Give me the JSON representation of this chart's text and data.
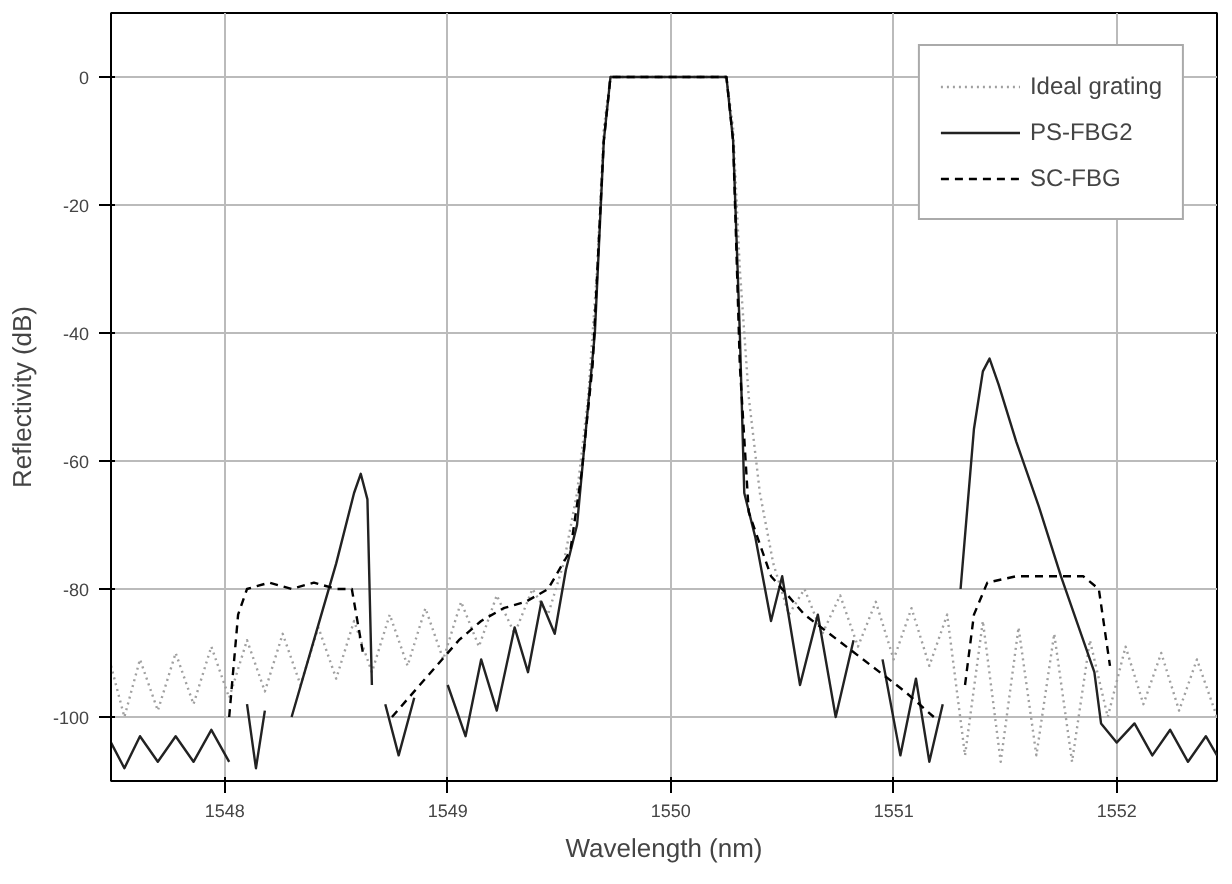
{
  "chart_data": {
    "type": "line",
    "xlabel": "Wavelength (nm)",
    "ylabel": "Reflectivity (dB)",
    "xlim": [
      1547.49,
      1552.45
    ],
    "ylim": [
      -110,
      10
    ],
    "xticks": [
      1548,
      1549,
      1550,
      1551,
      1552
    ],
    "yticks": [
      -100,
      -80,
      -60,
      -40,
      -20,
      0
    ],
    "grid": true,
    "legend": "top right",
    "series": [
      {
        "name": "Ideal grating",
        "color": "#a0a0a0",
        "line_style": "dotted",
        "x": [
          1547.49,
          1547.55,
          1547.62,
          1547.7,
          1547.78,
          1547.86,
          1547.94,
          1548.02,
          1548.1,
          1548.18,
          1548.26,
          1548.34,
          1548.42,
          1548.5,
          1548.58,
          1548.66,
          1548.74,
          1548.82,
          1548.9,
          1548.98,
          1549.06,
          1549.14,
          1549.22,
          1549.3,
          1549.38,
          1549.45,
          1549.52,
          1549.58,
          1549.63,
          1549.67,
          1549.7,
          1549.73,
          1550.25,
          1550.28,
          1550.31,
          1550.35,
          1550.4,
          1550.46,
          1550.53,
          1550.6,
          1550.68,
          1550.76,
          1550.84,
          1550.92,
          1551.0,
          1551.08,
          1551.16,
          1551.24,
          1551.32,
          1551.4,
          1551.48,
          1551.56,
          1551.64,
          1551.72,
          1551.8,
          1551.88,
          1551.96,
          1552.04,
          1552.12,
          1552.2,
          1552.28,
          1552.36,
          1552.45
        ],
        "values": [
          -92,
          -100,
          -91,
          -99,
          -90,
          -98,
          -89,
          -97,
          -88,
          -96,
          -87,
          -95,
          -86,
          -94,
          -85,
          -93,
          -84,
          -92,
          -83,
          -91,
          -82,
          -89,
          -81,
          -87,
          -80,
          -84,
          -76,
          -65,
          -50,
          -30,
          -8,
          0,
          0,
          -8,
          -30,
          -50,
          -65,
          -76,
          -84,
          -80,
          -87,
          -81,
          -89,
          -82,
          -91,
          -83,
          -92,
          -84,
          -106,
          -85,
          -107,
          -86,
          -106,
          -87,
          -107,
          -88,
          -100,
          -89,
          -98,
          -90,
          -99,
          -91,
          -100
        ]
      },
      {
        "name": "PS-FBG2",
        "color": "#222222",
        "line_style": "solid",
        "x": [
          1547.49,
          1547.55,
          1547.62,
          1547.7,
          1547.78,
          1547.86,
          1547.94,
          1548.02,
          1548.06,
          1548.1,
          1548.14,
          1548.18,
          1548.22,
          1548.3,
          1548.4,
          1548.5,
          1548.58,
          1548.61,
          1548.64,
          1548.66,
          1548.68,
          1548.72,
          1548.78,
          1548.85,
          1548.92,
          1549.0,
          1549.08,
          1549.15,
          1549.22,
          1549.3,
          1549.36,
          1549.42,
          1549.48,
          1549.53,
          1549.58,
          1549.62,
          1549.66,
          1549.7,
          1549.73,
          1550.25,
          1550.28,
          1550.31,
          1550.33,
          1550.38,
          1550.45,
          1550.5,
          1550.58,
          1550.66,
          1550.74,
          1550.82,
          1550.88,
          1550.95,
          1551.03,
          1551.1,
          1551.16,
          1551.22,
          1551.25,
          1551.3,
          1551.36,
          1551.4,
          1551.43,
          1551.47,
          1551.55,
          1551.65,
          1551.75,
          1551.85,
          1551.9,
          1551.93,
          1552.0,
          1552.08,
          1552.16,
          1552.24,
          1552.32,
          1552.4,
          1552.45
        ],
        "values": [
          -104,
          -108,
          -103,
          -107,
          -103,
          -107,
          -102,
          -107,
          null,
          -98,
          -108,
          -99,
          null,
          -100,
          -88,
          -76,
          -65,
          -62,
          -66,
          -95,
          null,
          -98,
          -106,
          -97,
          null,
          -95,
          -103,
          -91,
          -99,
          -86,
          -93,
          -82,
          -87,
          -77,
          -70,
          -55,
          -40,
          -10,
          0,
          0,
          -10,
          -40,
          -65,
          -72,
          -85,
          -78,
          -95,
          -84,
          -100,
          -88,
          null,
          -91,
          -106,
          -94,
          -107,
          -98,
          null,
          -80,
          -55,
          -46,
          -44,
          -48,
          -57,
          -67,
          -78,
          -88,
          -93,
          -101,
          -104,
          -101,
          -106,
          -102,
          -107,
          -103,
          -106
        ]
      },
      {
        "name": "SC-FBG",
        "color": "#000000",
        "line_style": "dashed",
        "x": [
          1548.02,
          1548.06,
          1548.1,
          1548.2,
          1548.3,
          1548.4,
          1548.5,
          1548.57,
          1548.62,
          1548.66,
          1548.75,
          1548.85,
          1548.95,
          1549.05,
          1549.15,
          1549.25,
          1549.35,
          1549.45,
          1549.55,
          1549.6,
          1549.65,
          1549.7,
          1549.73,
          1550.25,
          1550.28,
          1550.31,
          1550.35,
          1550.45,
          1550.6,
          1550.75,
          1550.9,
          1551.05,
          1551.18,
          1551.26,
          1551.32,
          1551.36,
          1551.42,
          1551.55,
          1551.7,
          1551.85,
          1551.92,
          1551.97
        ],
        "values": [
          -100,
          -84,
          -80,
          -79,
          -80,
          -79,
          -80,
          -80,
          -90,
          null,
          -100,
          -96,
          -92,
          -88,
          -85,
          -83,
          -82,
          -80,
          -74,
          -62,
          -45,
          -10,
          0,
          0,
          -10,
          -45,
          -68,
          -78,
          -84,
          -88,
          -92,
          -96,
          -100,
          null,
          -95,
          -84,
          -79,
          -78,
          -78,
          -78,
          -80,
          -92
        ]
      }
    ]
  }
}
